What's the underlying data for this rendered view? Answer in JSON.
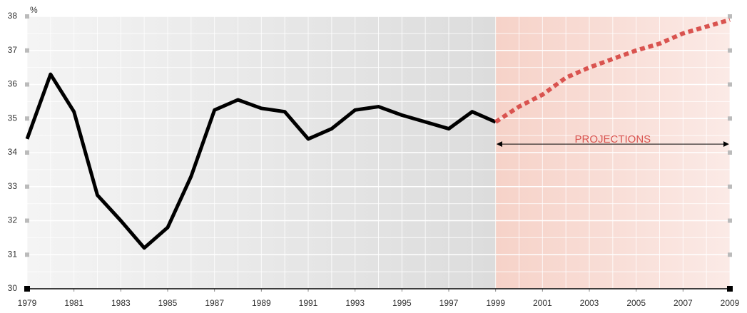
{
  "chart_data": {
    "type": "line",
    "y_label": "%",
    "annotation": "PROJECTIONS",
    "x": [
      1979,
      1980,
      1981,
      1982,
      1983,
      1984,
      1985,
      1986,
      1987,
      1988,
      1989,
      1990,
      1991,
      1992,
      1993,
      1994,
      1995,
      1996,
      1997,
      1998,
      1999,
      2000,
      2001,
      2002,
      2003,
      2004,
      2005,
      2006,
      2007,
      2008,
      2009
    ],
    "series": [
      {
        "color": "#000000",
        "style": "solid",
        "values": [
          34.4,
          36.3,
          35.2,
          32.75,
          32.0,
          31.2,
          31.8,
          33.3,
          35.25,
          35.55,
          35.3,
          35.2,
          34.4,
          34.7,
          35.25,
          35.35,
          35.1,
          34.9,
          34.7,
          35.2,
          34.9,
          null,
          null,
          null,
          null,
          null,
          null,
          null,
          null,
          null,
          null
        ]
      },
      {
        "color": "#d9534f",
        "style": "dotted",
        "values": [
          null,
          null,
          null,
          null,
          null,
          null,
          null,
          null,
          null,
          null,
          null,
          null,
          null,
          null,
          null,
          null,
          null,
          null,
          null,
          null,
          34.9,
          35.35,
          35.7,
          36.2,
          36.5,
          36.75,
          37.0,
          37.2,
          37.5,
          37.7,
          37.9
        ]
      }
    ],
    "xlim": [
      1979,
      2009
    ],
    "ylim": [
      30,
      38
    ],
    "xticks": [
      1979,
      1981,
      1983,
      1985,
      1987,
      1989,
      1991,
      1993,
      1995,
      1997,
      1999,
      2001,
      2003,
      2005,
      2007,
      2009
    ],
    "yticks": [
      30,
      31,
      32,
      33,
      34,
      35,
      36,
      37,
      38
    ],
    "grid": true
  }
}
